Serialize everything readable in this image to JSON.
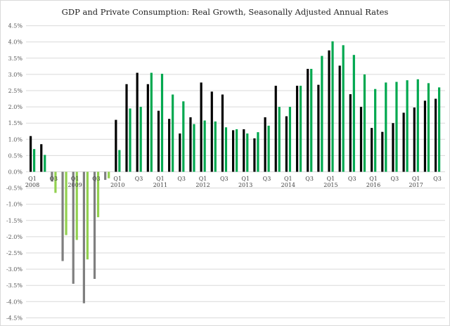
{
  "chart_data": {
    "type": "bar",
    "title": "GDP and Private Consumption: Real Growth, Seasonally Adjusted Annual Rates",
    "xlabel": "",
    "ylabel": "",
    "ylim": [
      -4.5,
      4.5
    ],
    "ytick_step": 0.5,
    "ytick_format": "percent_1dp",
    "grid": true,
    "legend": "none",
    "years": [
      "2008",
      "2009",
      "2010",
      "2011",
      "2012",
      "2013",
      "2014",
      "2015",
      "2016",
      "2017"
    ],
    "quarter_labels": [
      "Q1",
      "Q3"
    ],
    "categories": [
      "2008 Q1",
      "2008 Q2",
      "2008 Q3",
      "2008 Q4",
      "2009 Q1",
      "2009 Q2",
      "2009 Q3",
      "2009 Q4",
      "2010 Q1",
      "2010 Q2",
      "2010 Q3",
      "2010 Q4",
      "2011 Q1",
      "2011 Q2",
      "2011 Q3",
      "2011 Q4",
      "2012 Q1",
      "2012 Q2",
      "2012 Q3",
      "2012 Q4",
      "2013 Q1",
      "2013 Q2",
      "2013 Q3",
      "2013 Q4",
      "2014 Q1",
      "2014 Q2",
      "2014 Q3",
      "2014 Q4",
      "2015 Q1",
      "2015 Q2",
      "2015 Q3",
      "2015 Q4",
      "2016 Q1",
      "2016 Q2",
      "2016 Q3",
      "2016 Q4",
      "2017 Q1",
      "2017 Q2",
      "2017 Q3"
    ],
    "series": [
      {
        "values": [
          1.1,
          0.85,
          -0.3,
          -2.75,
          -3.45,
          -4.05,
          -3.3,
          -0.25,
          1.6,
          2.7,
          3.05,
          2.7,
          1.88,
          1.63,
          1.18,
          1.68,
          2.75,
          2.47,
          2.38,
          1.28,
          1.31,
          1.03,
          1.68,
          2.65,
          1.71,
          2.65,
          3.17,
          2.68,
          3.74,
          3.27,
          2.39,
          2.0,
          1.35,
          1.23,
          1.5,
          1.82,
          1.98,
          2.19,
          2.25
        ]
      },
      {
        "values": [
          0.7,
          0.52,
          -0.65,
          -1.95,
          -2.1,
          -2.7,
          -1.4,
          -0.2,
          0.67,
          1.95,
          2.0,
          3.05,
          3.02,
          2.38,
          2.17,
          1.47,
          1.58,
          1.55,
          1.37,
          1.31,
          1.18,
          1.22,
          1.42,
          2.0,
          2.0,
          2.65,
          3.17,
          3.57,
          4.02,
          3.9,
          3.6,
          3.0,
          2.55,
          2.75,
          2.77,
          2.82,
          2.85,
          2.73,
          2.6
        ]
      }
    ]
  },
  "colors": {
    "gdp_positive": "#000000",
    "gdp_negative": "#7f7f7f",
    "consumption_positive": "#00a84f",
    "consumption_negative": "#92d050",
    "gridline": "#d9d9d9"
  }
}
